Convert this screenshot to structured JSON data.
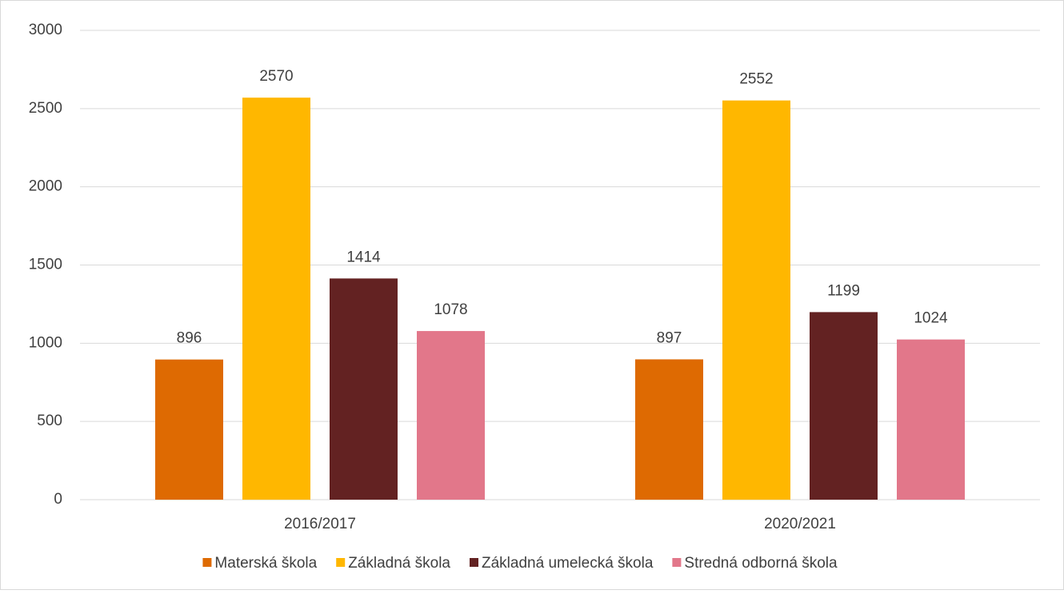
{
  "chart_data": {
    "type": "bar",
    "categories": [
      "2016/2017",
      "2020/2021"
    ],
    "series": [
      {
        "name": "Materská škola",
        "color": "#DE6A02",
        "values": [
          896,
          897
        ]
      },
      {
        "name": "Základná škola",
        "color": "#FFB700",
        "values": [
          2570,
          2552
        ]
      },
      {
        "name": "Základná umelecká škola",
        "color": "#632222",
        "values": [
          1414,
          1199
        ]
      },
      {
        "name": "Stredná odborná škola",
        "color": "#E2778A",
        "values": [
          1078,
          1024
        ]
      }
    ],
    "ylim": [
      0,
      3000
    ],
    "yticks": [
      0,
      500,
      1000,
      1500,
      2000,
      2500,
      3000
    ],
    "grid": true,
    "legend": "bottom"
  }
}
